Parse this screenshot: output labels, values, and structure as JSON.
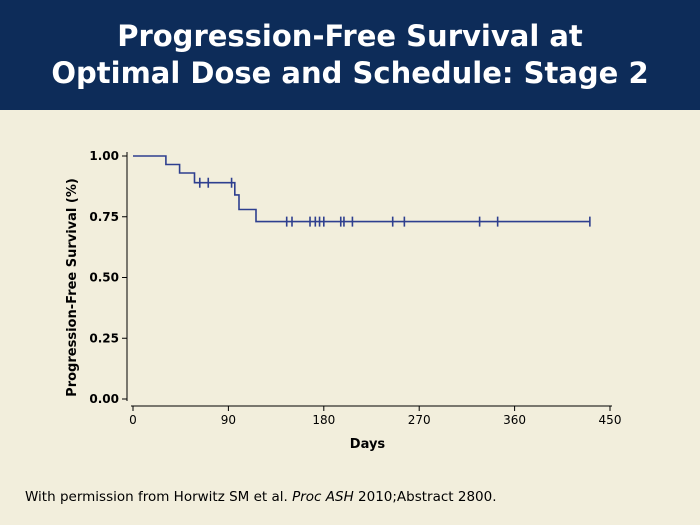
{
  "slide": {
    "title_line1": "Progression-Free Survival at",
    "title_line2": "Optimal Dose and Schedule: Stage 2",
    "citation_pre": "With permission from Horwitz SM et al. ",
    "citation_journal": "Proc ASH",
    "citation_post": " 2010;Abstract 2800."
  },
  "colors": {
    "header_bg": "#0d2c59",
    "background": "#f2eedc",
    "series": "#2e3f8f"
  },
  "chart_data": {
    "type": "line",
    "title": "",
    "xlabel": "Days",
    "ylabel": "Progression-Free Survival (%)",
    "xlim": [
      0,
      450
    ],
    "ylim": [
      0,
      1.0
    ],
    "xticks": [
      0,
      90,
      180,
      270,
      360,
      450
    ],
    "yticks": [
      0.0,
      0.25,
      0.5,
      0.75,
      1.0
    ],
    "ytick_labels": [
      "0.00",
      "0.25",
      "0.50",
      "0.75",
      "1.00"
    ],
    "grid": false,
    "series": [
      {
        "step_curve": [
          [
            0,
            1.0
          ],
          [
            31,
            1.0
          ],
          [
            31,
            0.965
          ],
          [
            44,
            0.965
          ],
          [
            44,
            0.93
          ],
          [
            58,
            0.93
          ],
          [
            58,
            0.89
          ],
          [
            96,
            0.89
          ],
          [
            96,
            0.84
          ],
          [
            100,
            0.84
          ],
          [
            100,
            0.78
          ],
          [
            116,
            0.78
          ],
          [
            116,
            0.73
          ],
          [
            431,
            0.73
          ]
        ],
        "censored": [
          [
            63,
            0.89
          ],
          [
            71,
            0.89
          ],
          [
            93,
            0.89
          ],
          [
            145,
            0.73
          ],
          [
            150,
            0.73
          ],
          [
            167,
            0.73
          ],
          [
            172,
            0.73
          ],
          [
            176,
            0.73
          ],
          [
            180,
            0.73
          ],
          [
            196,
            0.73
          ],
          [
            199,
            0.73
          ],
          [
            207,
            0.73
          ],
          [
            245,
            0.73
          ],
          [
            256,
            0.73
          ],
          [
            327,
            0.73
          ],
          [
            344,
            0.73
          ],
          [
            431,
            0.73
          ]
        ]
      }
    ]
  }
}
